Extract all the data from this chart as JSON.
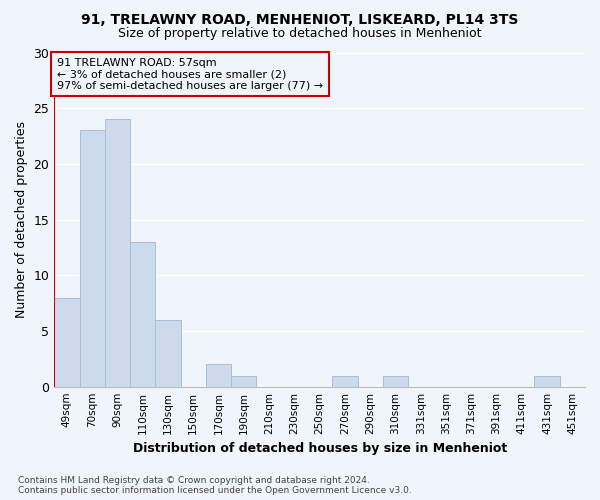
{
  "title1": "91, TRELAWNY ROAD, MENHENIOT, LISKEARD, PL14 3TS",
  "title2": "Size of property relative to detached houses in Menheniot",
  "xlabel": "Distribution of detached houses by size in Menheniot",
  "ylabel": "Number of detached properties",
  "categories": [
    "49sqm",
    "70sqm",
    "90sqm",
    "110sqm",
    "130sqm",
    "150sqm",
    "170sqm",
    "190sqm",
    "210sqm",
    "230sqm",
    "250sqm",
    "270sqm",
    "290sqm",
    "310sqm",
    "331sqm",
    "351sqm",
    "371sqm",
    "391sqm",
    "411sqm",
    "431sqm",
    "451sqm"
  ],
  "values": [
    8,
    23,
    24,
    13,
    6,
    0,
    2,
    1,
    0,
    0,
    0,
    1,
    0,
    1,
    0,
    0,
    0,
    0,
    0,
    1,
    0
  ],
  "bar_color": "#ccdaeb",
  "bar_edge_color": "#a8c0d8",
  "annotation_line1": "91 TRELAWNY ROAD: 57sqm",
  "annotation_line2": "← 3% of detached houses are smaller (2)",
  "annotation_line3": "97% of semi-detached houses are larger (77) →",
  "annotation_box_color": "#cc0000",
  "ylim": [
    0,
    30
  ],
  "yticks": [
    0,
    5,
    10,
    15,
    20,
    25,
    30
  ],
  "footer_text": "Contains HM Land Registry data © Crown copyright and database right 2024.\nContains public sector information licensed under the Open Government Licence v3.0.",
  "background_color": "#f0f4fb",
  "grid_color": "#ffffff",
  "fig_width": 6.0,
  "fig_height": 5.0
}
